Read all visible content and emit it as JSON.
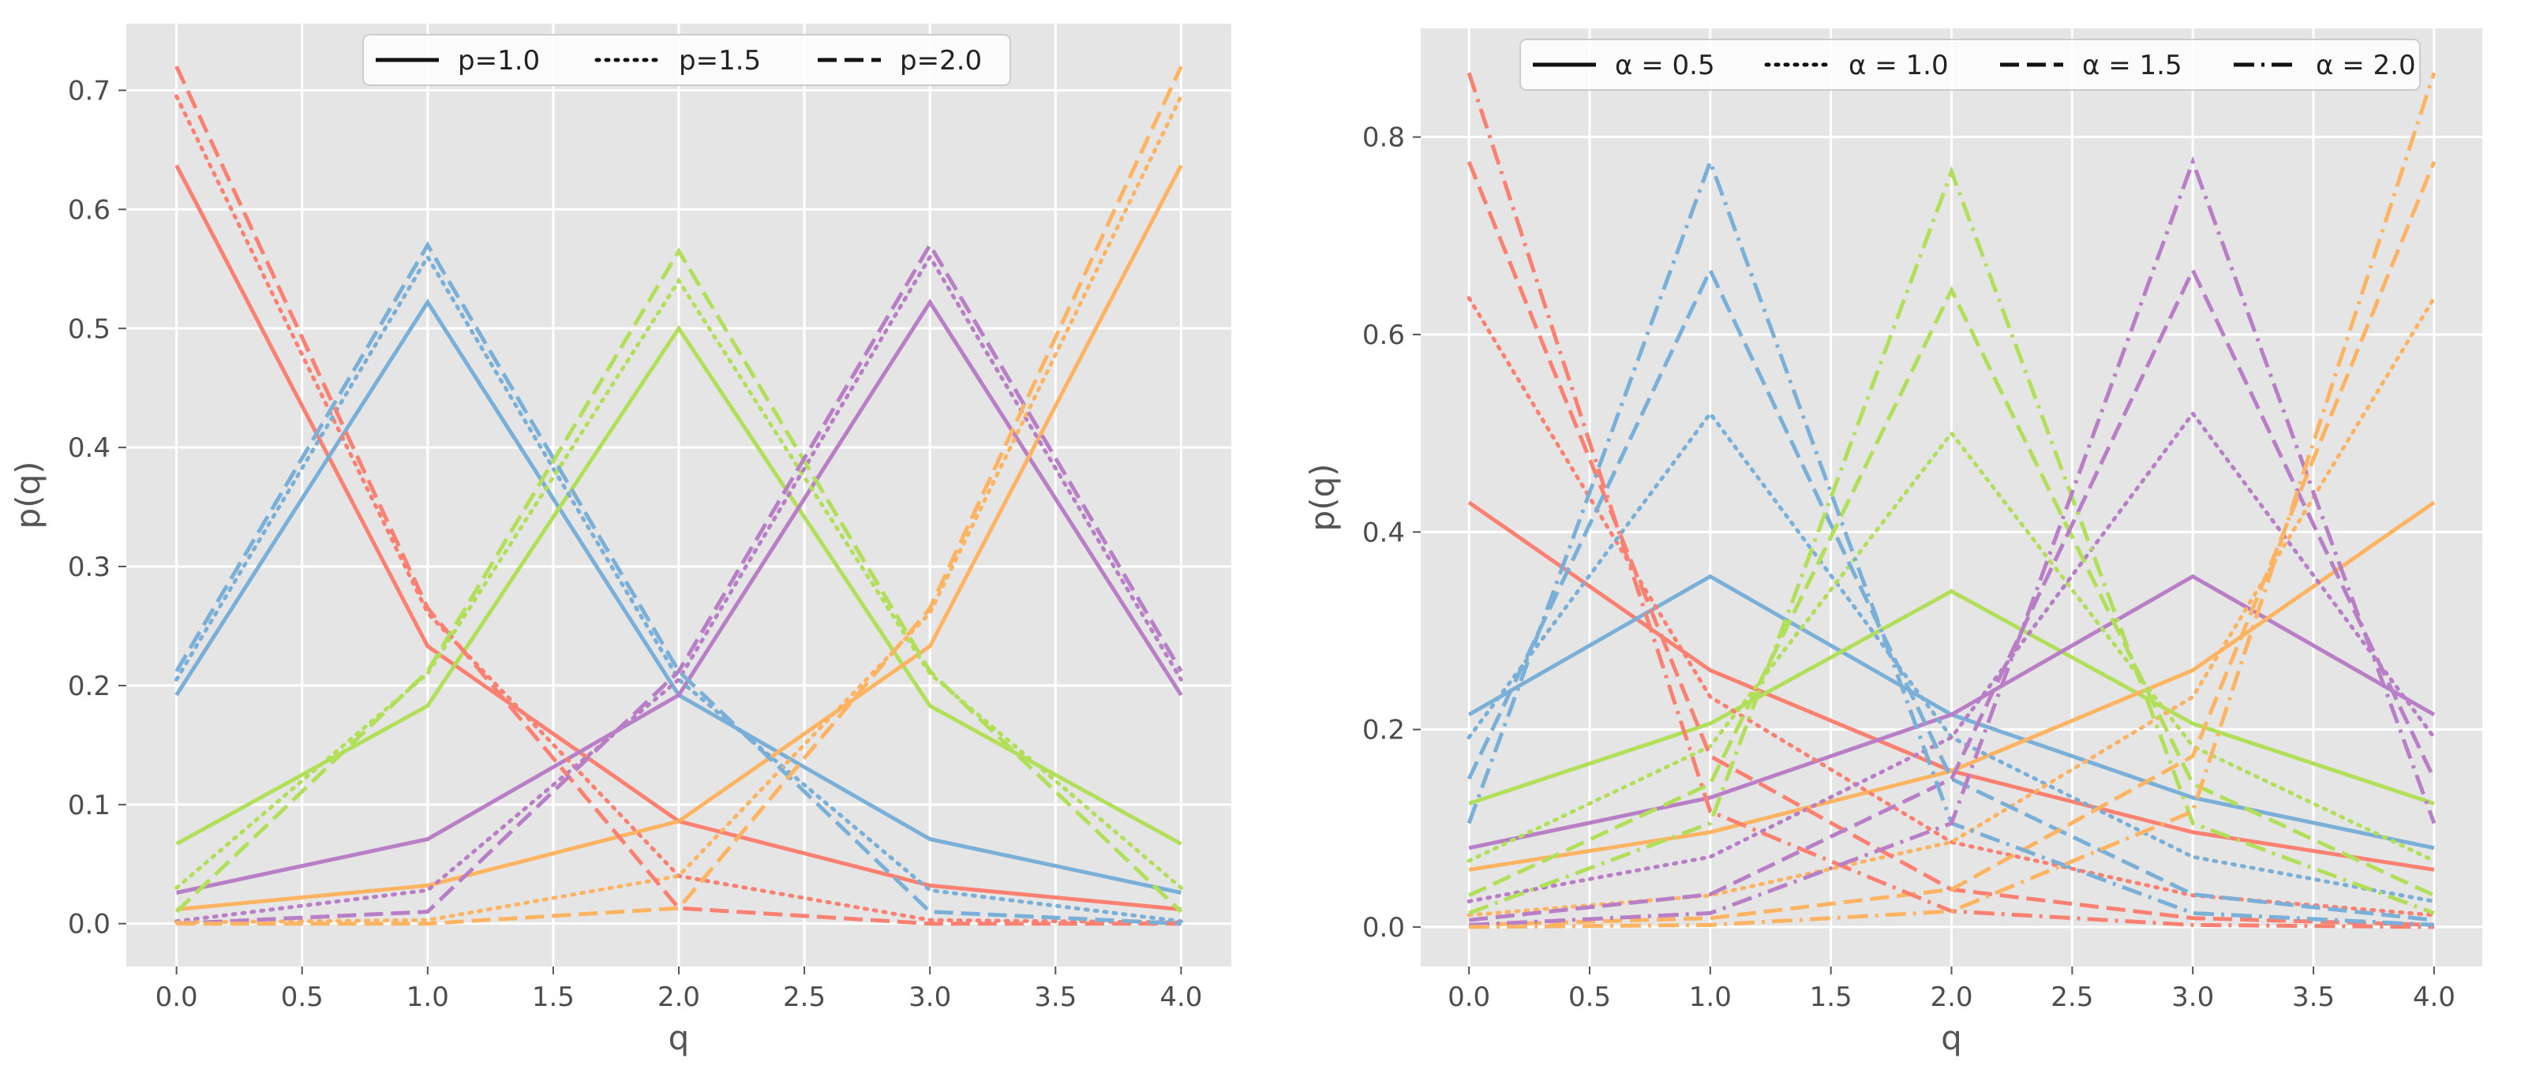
{
  "chart_data": [
    {
      "type": "line",
      "xlabel": "q",
      "ylabel": "p(q)",
      "xlim": [
        -0.2,
        4.2
      ],
      "ylim": [
        -0.036,
        0.756
      ],
      "xticks": [
        "0.0",
        "0.5",
        "1.0",
        "1.5",
        "2.0",
        "2.5",
        "3.0",
        "3.5",
        "4.0"
      ],
      "yticks": [
        "0.0",
        "0.1",
        "0.2",
        "0.3",
        "0.4",
        "0.5",
        "0.6",
        "0.7"
      ],
      "legend": {
        "placement": "top-center",
        "entries": [
          {
            "label": "p=1.0",
            "style": "solid"
          },
          {
            "label": "p=1.5",
            "style": "dotted"
          },
          {
            "label": "p=2.0",
            "style": "dashed"
          }
        ]
      },
      "x": [
        0,
        1,
        2,
        3,
        4
      ],
      "series": [
        {
          "name": "p=1.0, mode 0",
          "style": "solid",
          "color": "#fa8072",
          "values": [
            0.637,
            0.233,
            0.086,
            0.032,
            0.012
          ]
        },
        {
          "name": "p=1.0, mode 1",
          "style": "solid",
          "color": "#7ab0d8",
          "values": [
            0.192,
            0.522,
            0.192,
            0.071,
            0.026
          ]
        },
        {
          "name": "p=1.0, mode 2",
          "style": "solid",
          "color": "#b2df5a",
          "values": [
            0.067,
            0.183,
            0.5,
            0.183,
            0.067
          ]
        },
        {
          "name": "p=1.0, mode 3",
          "style": "solid",
          "color": "#b87fc6",
          "values": [
            0.026,
            0.071,
            0.192,
            0.522,
            0.192
          ]
        },
        {
          "name": "p=1.0, mode 4",
          "style": "solid",
          "color": "#fdb462",
          "values": [
            0.012,
            0.032,
            0.086,
            0.233,
            0.637
          ]
        },
        {
          "name": "p=1.5, mode 0",
          "style": "dotted",
          "color": "#fa8072",
          "values": [
            0.695,
            0.261,
            0.04,
            0.003,
            0.001
          ]
        },
        {
          "name": "p=1.5, mode 1",
          "style": "dotted",
          "color": "#7ab0d8",
          "values": [
            0.205,
            0.56,
            0.205,
            0.028,
            0.002
          ]
        },
        {
          "name": "p=1.5, mode 2",
          "style": "dotted",
          "color": "#b2df5a",
          "values": [
            0.03,
            0.21,
            0.54,
            0.21,
            0.03
          ]
        },
        {
          "name": "p=1.5, mode 3",
          "style": "dotted",
          "color": "#b87fc6",
          "values": [
            0.002,
            0.028,
            0.205,
            0.56,
            0.205
          ]
        },
        {
          "name": "p=1.5, mode 4",
          "style": "dotted",
          "color": "#fdb462",
          "values": [
            0.001,
            0.003,
            0.04,
            0.261,
            0.695
          ]
        },
        {
          "name": "p=2.0, mode 0",
          "style": "dashed",
          "color": "#fa8072",
          "values": [
            0.72,
            0.265,
            0.013,
            0.0,
            0.0
          ]
        },
        {
          "name": "p=2.0, mode 1",
          "style": "dashed",
          "color": "#7ab0d8",
          "values": [
            0.212,
            0.57,
            0.212,
            0.01,
            0.0
          ]
        },
        {
          "name": "p=2.0, mode 2",
          "style": "dashed",
          "color": "#b2df5a",
          "values": [
            0.01,
            0.212,
            0.565,
            0.212,
            0.01
          ]
        },
        {
          "name": "p=2.0, mode 3",
          "style": "dashed",
          "color": "#b87fc6",
          "values": [
            0.0,
            0.01,
            0.212,
            0.57,
            0.212
          ]
        },
        {
          "name": "p=2.0, mode 4",
          "style": "dashed",
          "color": "#fdb462",
          "values": [
            0.0,
            0.0,
            0.013,
            0.265,
            0.72
          ]
        }
      ]
    },
    {
      "type": "line",
      "xlabel": "q",
      "ylabel": "p(q)",
      "xlim": [
        -0.2,
        4.2
      ],
      "ylim": [
        -0.04,
        0.91
      ],
      "xticks": [
        "0.0",
        "0.5",
        "1.0",
        "1.5",
        "2.0",
        "2.5",
        "3.0",
        "3.5",
        "4.0"
      ],
      "yticks": [
        "0.0",
        "0.2",
        "0.4",
        "0.6",
        "0.8"
      ],
      "legend": {
        "placement": "top-center",
        "entries": [
          {
            "label": "α = 0.5",
            "style": "solid"
          },
          {
            "label": "α = 1.0",
            "style": "dotted"
          },
          {
            "label": "α = 1.5",
            "style": "dashed"
          },
          {
            "label": "α = 2.0",
            "style": "dashdot"
          }
        ]
      },
      "x": [
        0,
        1,
        2,
        3,
        4
      ],
      "series": [
        {
          "name": "α=0.5, mode 0",
          "style": "solid",
          "color": "#fa8072",
          "values": [
            0.43,
            0.26,
            0.158,
            0.096,
            0.058
          ]
        },
        {
          "name": "α=0.5, mode 1",
          "style": "solid",
          "color": "#7ab0d8",
          "values": [
            0.215,
            0.355,
            0.215,
            0.131,
            0.08
          ]
        },
        {
          "name": "α=0.5, mode 2",
          "style": "solid",
          "color": "#b2df5a",
          "values": [
            0.125,
            0.206,
            0.34,
            0.206,
            0.125
          ]
        },
        {
          "name": "α=0.5, mode 3",
          "style": "solid",
          "color": "#b87fc6",
          "values": [
            0.08,
            0.131,
            0.215,
            0.355,
            0.215
          ]
        },
        {
          "name": "α=0.5, mode 4",
          "style": "solid",
          "color": "#fdb462",
          "values": [
            0.058,
            0.096,
            0.158,
            0.26,
            0.43
          ]
        },
        {
          "name": "α=1.0, mode 0",
          "style": "dotted",
          "color": "#fa8072",
          "values": [
            0.637,
            0.233,
            0.086,
            0.032,
            0.012
          ]
        },
        {
          "name": "α=1.0, mode 1",
          "style": "dotted",
          "color": "#7ab0d8",
          "values": [
            0.192,
            0.52,
            0.192,
            0.071,
            0.026
          ]
        },
        {
          "name": "α=1.0, mode 2",
          "style": "dotted",
          "color": "#b2df5a",
          "values": [
            0.067,
            0.183,
            0.5,
            0.183,
            0.067
          ]
        },
        {
          "name": "α=1.0, mode 3",
          "style": "dotted",
          "color": "#b87fc6",
          "values": [
            0.026,
            0.071,
            0.192,
            0.52,
            0.192
          ]
        },
        {
          "name": "α=1.0, mode 4",
          "style": "dotted",
          "color": "#fdb462",
          "values": [
            0.012,
            0.032,
            0.086,
            0.233,
            0.637
          ]
        },
        {
          "name": "α=1.5, mode 0",
          "style": "dashed",
          "color": "#fa8072",
          "values": [
            0.775,
            0.173,
            0.038,
            0.009,
            0.002
          ]
        },
        {
          "name": "α=1.5, mode 1",
          "style": "dashed",
          "color": "#7ab0d8",
          "values": [
            0.15,
            0.665,
            0.15,
            0.033,
            0.007
          ]
        },
        {
          "name": "α=1.5, mode 2",
          "style": "dashed",
          "color": "#b2df5a",
          "values": [
            0.032,
            0.145,
            0.645,
            0.145,
            0.032
          ]
        },
        {
          "name": "α=1.5, mode 3",
          "style": "dashed",
          "color": "#b87fc6",
          "values": [
            0.007,
            0.033,
            0.15,
            0.665,
            0.15
          ]
        },
        {
          "name": "α=1.5, mode 4",
          "style": "dashed",
          "color": "#fdb462",
          "values": [
            0.002,
            0.009,
            0.038,
            0.173,
            0.775
          ]
        },
        {
          "name": "α=2.0, mode 0",
          "style": "dashdot",
          "color": "#fa8072",
          "values": [
            0.865,
            0.117,
            0.016,
            0.002,
            0.0
          ]
        },
        {
          "name": "α=2.0, mode 1",
          "style": "dashdot",
          "color": "#7ab0d8",
          "values": [
            0.105,
            0.775,
            0.105,
            0.014,
            0.002
          ]
        },
        {
          "name": "α=2.0, mode 2",
          "style": "dashdot",
          "color": "#b2df5a",
          "values": [
            0.014,
            0.105,
            0.765,
            0.105,
            0.014
          ]
        },
        {
          "name": "α=2.0, mode 3",
          "style": "dashdot",
          "color": "#b87fc6",
          "values": [
            0.002,
            0.014,
            0.105,
            0.775,
            0.105
          ]
        },
        {
          "name": "α=2.0, mode 4",
          "style": "dashdot",
          "color": "#fdb462",
          "values": [
            0.0,
            0.002,
            0.016,
            0.117,
            0.865
          ]
        }
      ]
    }
  ]
}
